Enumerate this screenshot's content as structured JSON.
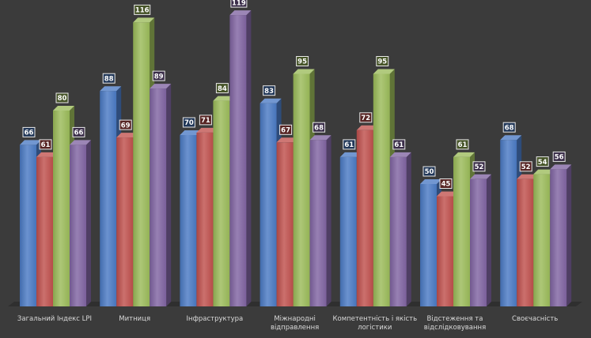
{
  "chart_data": {
    "type": "bar",
    "title": "",
    "xlabel": "",
    "ylabel": "",
    "ylim": [
      0,
      125
    ],
    "grid": false,
    "legend": "none",
    "categories": [
      [
        "Загальний Індекс LPI"
      ],
      [
        "Митниця"
      ],
      [
        "Інфраструктура"
      ],
      [
        "Міжнародні",
        "відправлення"
      ],
      [
        "Компетентність і якість",
        "логістики"
      ],
      [
        "Відстеження та",
        "відслідковування"
      ],
      [
        "Своєчасність"
      ]
    ],
    "series": [
      {
        "color": "#4a7ac4",
        "values": [
          66,
          88,
          70,
          83,
          61,
          50,
          68
        ]
      },
      {
        "color": "#c0504d",
        "values": [
          61,
          69,
          71,
          67,
          72,
          45,
          52
        ]
      },
      {
        "color": "#9bbb59",
        "values": [
          80,
          116,
          84,
          95,
          95,
          61,
          54
        ]
      },
      {
        "color": "#8064a2",
        "values": [
          66,
          89,
          119,
          68,
          61,
          52,
          56
        ]
      }
    ]
  }
}
